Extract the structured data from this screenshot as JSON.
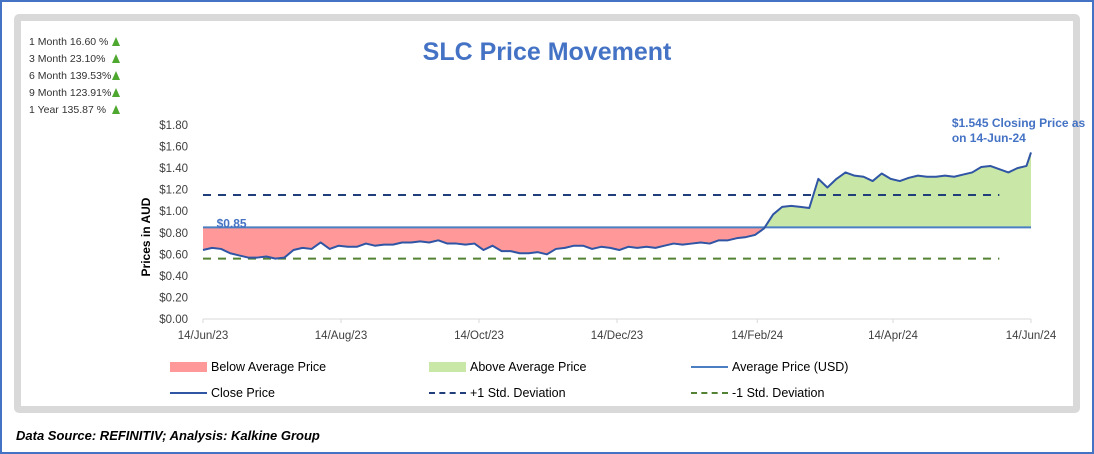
{
  "performance": [
    {
      "label": "1 Month 16.60 %",
      "direction": "up"
    },
    {
      "label": "3 Month 23.10%",
      "direction": "up"
    },
    {
      "label": "6 Month 139.53%",
      "direction": "up"
    },
    {
      "label": "9 Month 123.91%",
      "direction": "up"
    },
    {
      "label": "1 Year 135.87 %",
      "direction": "up"
    }
  ],
  "footer": "Data Source: REFINITIV; Analysis: Kalkine Group",
  "colors": {
    "title": "#4472c4",
    "close_line": "#2f55a4",
    "average_line": "#4a7fc1",
    "plus_sd": "#203f7a",
    "minus_sd": "#548235",
    "below_fill": "#ff9999",
    "above_fill": "#c9e7a7",
    "up_arrow": "#4ea72e"
  },
  "chart_data": {
    "type": "area",
    "title": "SLC Price Movement",
    "xlabel": "",
    "ylabel": "Prices in AUD",
    "ylim": [
      0,
      1.8
    ],
    "yticks": [
      0,
      0.2,
      0.4,
      0.6,
      0.8,
      1.0,
      1.2,
      1.4,
      1.6,
      1.8
    ],
    "ytick_labels": [
      "$0.00",
      "$0.20",
      "$0.40",
      "$0.60",
      "$0.80",
      "$1.00",
      "$1.20",
      "$1.40",
      "$1.60",
      "$1.80"
    ],
    "xrange": [
      "2023-06-14",
      "2024-06-14"
    ],
    "xticks": [
      "2023-06-14",
      "2023-08-14",
      "2023-10-14",
      "2023-12-14",
      "2024-02-14",
      "2024-04-14",
      "2024-06-14"
    ],
    "xtick_labels": [
      "14/Jun/23",
      "14/Aug/23",
      "14/Oct/23",
      "14/Dec/23",
      "14/Feb/24",
      "14/Apr/24",
      "14/Jun/24"
    ],
    "grid": false,
    "average_price": 0.85,
    "plus_1_sd": 1.15,
    "minus_1_sd": 0.56,
    "annotations": [
      {
        "text": "$0.85",
        "x": "2023-06-20",
        "y": 0.85
      },
      {
        "text": "$1.545 Closing Price as",
        "x": "2024-05-10",
        "y": 1.78
      },
      {
        "text": "on 14-Jun-24",
        "x": "2024-05-10",
        "y": 1.64
      }
    ],
    "legend": [
      {
        "label": "Below Average Price",
        "kind": "fill",
        "color_key": "below_fill"
      },
      {
        "label": "Above Average Price",
        "kind": "fill",
        "color_key": "above_fill"
      },
      {
        "label": "Average Price (USD)",
        "kind": "line",
        "color_key": "average_line"
      },
      {
        "label": "Close Price",
        "kind": "line",
        "color_key": "close_line"
      },
      {
        "label": "+1 Std. Deviation",
        "kind": "dash",
        "color_key": "plus_sd"
      },
      {
        "label": "-1 Std. Deviation",
        "kind": "dash",
        "color_key": "minus_sd"
      }
    ],
    "legend_position": "bottom",
    "series": [
      {
        "name": "Close Price",
        "x": [
          "2023-06-14",
          "2023-06-18",
          "2023-06-22",
          "2023-06-26",
          "2023-06-30",
          "2023-07-04",
          "2023-07-08",
          "2023-07-12",
          "2023-07-16",
          "2023-07-20",
          "2023-07-24",
          "2023-07-28",
          "2023-08-01",
          "2023-08-05",
          "2023-08-09",
          "2023-08-13",
          "2023-08-17",
          "2023-08-21",
          "2023-08-25",
          "2023-08-29",
          "2023-09-02",
          "2023-09-06",
          "2023-09-10",
          "2023-09-14",
          "2023-09-18",
          "2023-09-22",
          "2023-09-26",
          "2023-09-30",
          "2023-10-04",
          "2023-10-08",
          "2023-10-12",
          "2023-10-16",
          "2023-10-20",
          "2023-10-24",
          "2023-10-28",
          "2023-11-01",
          "2023-11-05",
          "2023-11-09",
          "2023-11-13",
          "2023-11-17",
          "2023-11-21",
          "2023-11-25",
          "2023-11-29",
          "2023-12-03",
          "2023-12-07",
          "2023-12-11",
          "2023-12-15",
          "2023-12-19",
          "2023-12-23",
          "2023-12-27",
          "2023-12-31",
          "2024-01-04",
          "2024-01-08",
          "2024-01-12",
          "2024-01-16",
          "2024-01-20",
          "2024-01-24",
          "2024-01-28",
          "2024-02-01",
          "2024-02-05",
          "2024-02-09",
          "2024-02-13",
          "2024-02-17",
          "2024-02-21",
          "2024-02-25",
          "2024-02-29",
          "2024-03-04",
          "2024-03-08",
          "2024-03-12",
          "2024-03-16",
          "2024-03-20",
          "2024-03-24",
          "2024-03-28",
          "2024-04-01",
          "2024-04-05",
          "2024-04-09",
          "2024-04-13",
          "2024-04-17",
          "2024-04-21",
          "2024-04-25",
          "2024-04-29",
          "2024-05-03",
          "2024-05-07",
          "2024-05-11",
          "2024-05-15",
          "2024-05-19",
          "2024-05-23",
          "2024-05-27",
          "2024-05-31",
          "2024-06-04",
          "2024-06-08",
          "2024-06-12",
          "2024-06-14"
        ],
        "values": [
          0.64,
          0.66,
          0.65,
          0.61,
          0.59,
          0.57,
          0.57,
          0.58,
          0.56,
          0.57,
          0.64,
          0.66,
          0.65,
          0.71,
          0.65,
          0.68,
          0.67,
          0.67,
          0.7,
          0.68,
          0.69,
          0.69,
          0.71,
          0.71,
          0.72,
          0.71,
          0.73,
          0.7,
          0.7,
          0.69,
          0.7,
          0.64,
          0.68,
          0.63,
          0.63,
          0.61,
          0.61,
          0.62,
          0.6,
          0.65,
          0.66,
          0.68,
          0.68,
          0.65,
          0.67,
          0.66,
          0.64,
          0.67,
          0.66,
          0.67,
          0.66,
          0.68,
          0.7,
          0.69,
          0.7,
          0.71,
          0.7,
          0.73,
          0.73,
          0.75,
          0.76,
          0.78,
          0.84,
          0.97,
          1.04,
          1.05,
          1.04,
          1.03,
          1.3,
          1.22,
          1.3,
          1.36,
          1.33,
          1.32,
          1.28,
          1.35,
          1.3,
          1.28,
          1.31,
          1.33,
          1.32,
          1.32,
          1.33,
          1.32,
          1.34,
          1.36,
          1.41,
          1.42,
          1.39,
          1.36,
          1.4,
          1.42,
          1.545
        ]
      }
    ]
  }
}
